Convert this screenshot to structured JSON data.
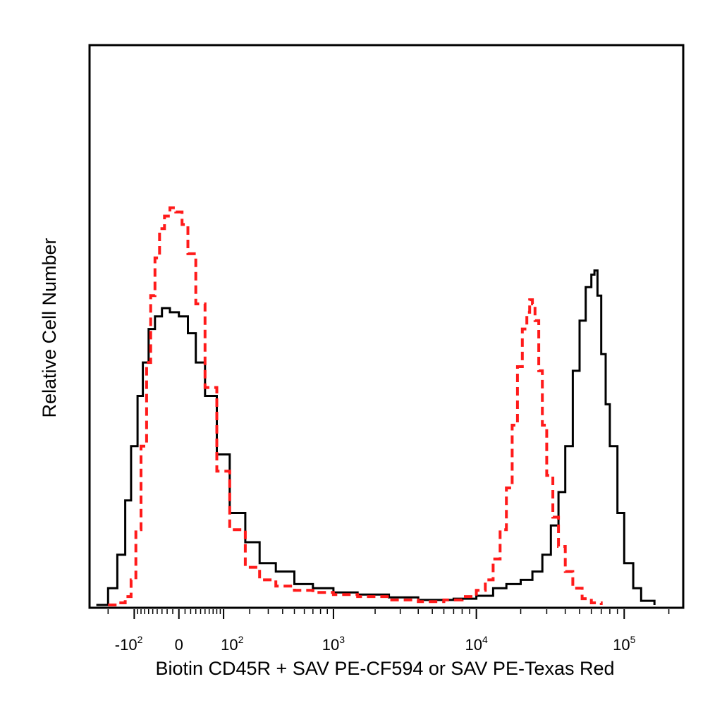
{
  "chart_data": {
    "type": "line",
    "title": "",
    "xlabel": "Biotin CD45R + SAV PE-CF594 or SAV PE-Texas Red",
    "ylabel": "Relative Cell Number",
    "x_scale": "biexponential",
    "xlim": [
      -300,
      250000
    ],
    "ylim": [
      0,
      100
    ],
    "grid": false,
    "legend": "none",
    "x_ticks": [
      {
        "value": -100,
        "label": "-10",
        "exp": "2"
      },
      {
        "value": 0,
        "label": "0",
        "exp": ""
      },
      {
        "value": 100,
        "label": "10",
        "exp": "2"
      },
      {
        "value": 1000,
        "label": "10",
        "exp": "3"
      },
      {
        "value": 10000,
        "label": "10",
        "exp": "4"
      },
      {
        "value": 100000,
        "label": "10",
        "exp": "5"
      }
    ],
    "series": [
      {
        "color": "#000000",
        "dash": "solid",
        "x": [
          -260,
          -200,
          -160,
          -130,
          -110,
          -90,
          -75,
          -60,
          -45,
          -30,
          -15,
          0,
          15,
          30,
          50,
          80,
          120,
          180,
          250,
          350,
          500,
          700,
          1000,
          1500,
          2500,
          4000,
          7000,
          10000,
          13000,
          16000,
          20000,
          24000,
          28000,
          32000,
          36000,
          40000,
          45000,
          50000,
          55000,
          60000,
          63000,
          66000,
          70000,
          75000,
          80000,
          90000,
          100000,
          115000,
          130000,
          160000
        ],
        "y": [
          0,
          4,
          12,
          25,
          38,
          50,
          58,
          66,
          69,
          71,
          70,
          69,
          65,
          58,
          50,
          36,
          22,
          15,
          10,
          8,
          5,
          4,
          3,
          2.5,
          1.8,
          1.2,
          1.5,
          2.2,
          4,
          5,
          6,
          8,
          12,
          19,
          27,
          38,
          56,
          68,
          76,
          79,
          80,
          74,
          60,
          48,
          38,
          22,
          10,
          4,
          1,
          0
        ]
      },
      {
        "color": "#ff1a1a",
        "dash": "dashed",
        "x": [
          -200,
          -160,
          -130,
          -110,
          -95,
          -80,
          -65,
          -55,
          -45,
          -35,
          -25,
          -15,
          -5,
          5,
          15,
          30,
          50,
          80,
          120,
          180,
          250,
          350,
          500,
          700,
          1000,
          1500,
          2500,
          4000,
          6000,
          8000,
          10000,
          11500,
          13000,
          14500,
          16000,
          17500,
          19000,
          20500,
          22000,
          23000,
          24000,
          25000,
          26500,
          28000,
          30000,
          33000,
          36000,
          40000,
          45000,
          52000,
          60000,
          70000
        ],
        "y": [
          0,
          0.5,
          2,
          6,
          18,
          38,
          58,
          74,
          83,
          90,
          93,
          95,
          94,
          91,
          84,
          72,
          52,
          32,
          18,
          9,
          6,
          4.5,
          3.5,
          3,
          2.5,
          2,
          1.2,
          0.8,
          1.2,
          2,
          3.5,
          6,
          11,
          18,
          28,
          43,
          57,
          66,
          70,
          73,
          72,
          68,
          56,
          43,
          31,
          21,
          14,
          8,
          4,
          1.5,
          0.5,
          0
        ]
      }
    ]
  }
}
